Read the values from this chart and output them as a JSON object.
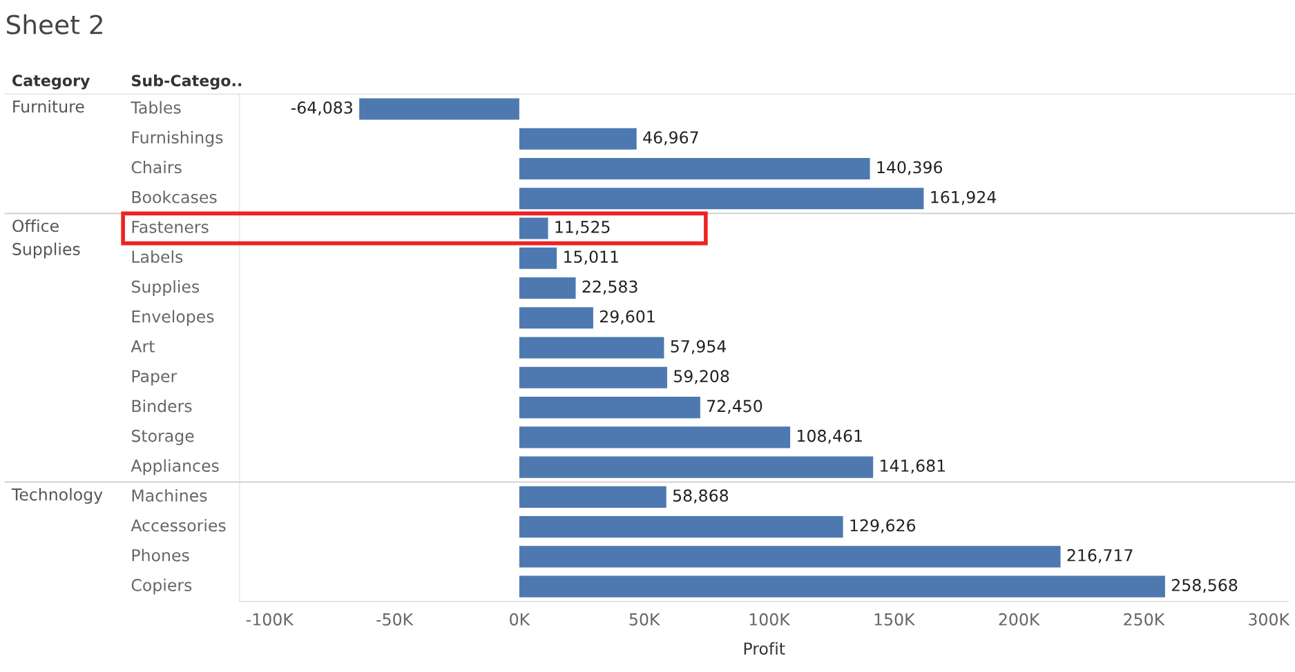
{
  "chart_data": {
    "type": "bar",
    "orientation": "horizontal",
    "title": "Sheet 2",
    "xlabel": "Profit",
    "categories": [
      "Tables",
      "Furnishings",
      "Chairs",
      "Bookcases",
      "Fasteners",
      "Labels",
      "Supplies",
      "Envelopes",
      "Art",
      "Paper",
      "Binders",
      "Storage",
      "Appliances",
      "Machines",
      "Accessories",
      "Phones",
      "Copiers"
    ],
    "values": [
      -64083,
      46967,
      140396,
      161924,
      11525,
      15011,
      22583,
      29601,
      57954,
      59208,
      72450,
      108461,
      141681,
      58868,
      129626,
      216717,
      258568
    ],
    "value_labels": [
      "-64,083",
      "46,967",
      "140,396",
      "161,924",
      "11,525",
      "15,011",
      "22,583",
      "29,601",
      "57,954",
      "59,208",
      "72,450",
      "108,461",
      "141,681",
      "58,868",
      "129,626",
      "216,717",
      "258,568"
    ],
    "color": "#4e79b0",
    "xlim": [
      -112000,
      308000
    ],
    "xticks": [
      {
        "value": -100000,
        "label": "-100K"
      },
      {
        "value": -50000,
        "label": "-50K"
      },
      {
        "value": 0,
        "label": "0K"
      },
      {
        "value": 50000,
        "label": "50K"
      },
      {
        "value": 100000,
        "label": "100K"
      },
      {
        "value": 150000,
        "label": "150K"
      },
      {
        "value": 200000,
        "label": "200K"
      },
      {
        "value": 250000,
        "label": "250K"
      },
      {
        "value": 300000,
        "label": "300K"
      }
    ],
    "grid": false,
    "annotations": [
      "Category",
      "Sub-Catego..",
      "Furniture",
      "Office\nSupplies",
      "Technology"
    ]
  }
}
